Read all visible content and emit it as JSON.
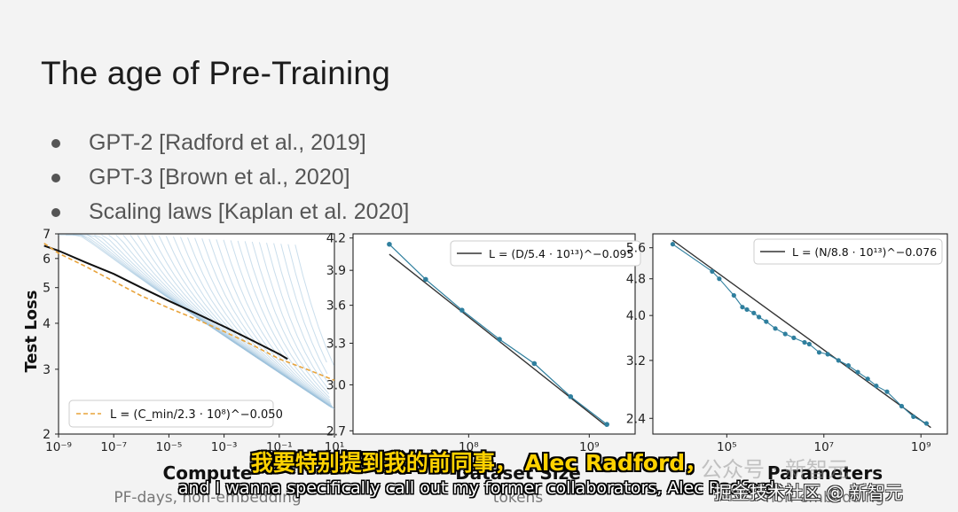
{
  "slide": {
    "title": "The age of Pre-Training",
    "bullets": [
      "GPT-2 [Radford et al., 2019]",
      "GPT-3 [Brown et al., 2020]",
      "Scaling laws [Kaplan et al. 2020]"
    ]
  },
  "chart_data": [
    {
      "type": "line",
      "xlabel": "Compute",
      "xsublabel": "PF-days, non-embedding",
      "ylabel": "Test Loss",
      "xscale": "log",
      "yscale": "log",
      "xlim": [
        1e-09,
        10
      ],
      "ylim": [
        2,
        7
      ],
      "x_ticks": [
        "10⁻⁹",
        "10⁻⁷",
        "10⁻⁵",
        "10⁻³",
        "10⁻¹",
        "10¹"
      ],
      "y_ticks": [
        "2",
        "3",
        "4",
        "5",
        "6",
        "7"
      ],
      "legend": "L = (C_min/2.3 · 10⁸)^−0.050",
      "legend_position": "bottom-left",
      "series": [
        {
          "values": [
            [
              3e-10,
              6.6
            ],
            [
              1e-09,
              6.2
            ],
            [
              1e-08,
              5.7
            ],
            [
              1e-07,
              5.2
            ],
            [
              1e-06,
              4.75
            ],
            [
              1e-05,
              4.4
            ],
            [
              0.0001,
              4.1
            ],
            [
              0.001,
              3.8
            ],
            [
              0.01,
              3.5
            ],
            [
              0.1,
              3.2
            ],
            [
              1,
              3.0
            ]
          ]
        },
        {
          "values": [
            [
              3e-10,
              6.5
            ],
            [
              1e-09,
              6.3
            ],
            [
              1e-08,
              5.85
            ],
            [
              1e-07,
              5.45
            ],
            [
              1e-06,
              5.0
            ],
            [
              1e-05,
              4.6
            ],
            [
              0.0001,
              4.25
            ],
            [
              0.001,
              3.92
            ],
            [
              0.01,
              3.6
            ],
            [
              0.1,
              3.3
            ],
            [
              0.2,
              3.2
            ]
          ]
        }
      ],
      "colors": {
        "fit": "#e8a33a",
        "envelope": "#111111",
        "curves": "#9ec3dd"
      }
    },
    {
      "type": "line",
      "xlabel": "Dataset Size",
      "xsublabel": "tokens",
      "xscale": "log",
      "yscale": "log",
      "y_ticks": [
        "2.7",
        "3.0",
        "3.3",
        "3.6",
        "3.9",
        "4.2"
      ],
      "x_ticks": [
        "10⁸",
        "10⁹"
      ],
      "legend": "L = (D/5.4 · 10¹³)^−0.095",
      "legend_position": "top-right",
      "x": [
        22000000.0,
        44000000.0,
        88000000.0,
        180000000.0,
        350000000.0,
        700000000.0,
        1400000000.0
      ],
      "values": [
        4.14,
        3.82,
        3.56,
        3.33,
        3.15,
        2.92,
        2.74
      ],
      "colors": {
        "points": "#2f7f9e",
        "fit": "#333333"
      }
    },
    {
      "type": "line",
      "xlabel": "Parameters",
      "xsublabel": "non-embedding",
      "xscale": "log",
      "yscale": "log",
      "y_ticks": [
        "2.4",
        "3.2",
        "4.0",
        "4.8",
        "5.6"
      ],
      "x_ticks": [
        "10⁵",
        "10⁷",
        "10⁹"
      ],
      "legend": "L = (N/8.8 · 10¹³)^−0.076",
      "legend_position": "top-right",
      "x": [
        7700.0,
        50000.0,
        70000.0,
        140000.0,
        210000.0,
        260000.0,
        360000.0,
        460000.0,
        650000.0,
        1000000.0,
        1600000.0,
        2400000.0,
        4000000.0,
        5000000.0,
        8000000.0,
        12000000.0,
        20000000.0,
        32000000.0,
        50000000.0,
        80000000.0,
        120000000.0,
        200000000.0,
        400000000.0,
        700000000.0,
        1300000000.0
      ],
      "values": [
        5.7,
        4.98,
        4.8,
        4.42,
        4.17,
        4.12,
        4.05,
        3.97,
        3.88,
        3.75,
        3.65,
        3.58,
        3.5,
        3.47,
        3.33,
        3.3,
        3.2,
        3.12,
        3.02,
        2.92,
        2.82,
        2.74,
        2.55,
        2.42,
        2.34
      ],
      "colors": {
        "points": "#2f7f9e",
        "fit": "#333333"
      }
    }
  ],
  "subtitles": {
    "zh": "我要特别提到我的前同事， Alec Radford，",
    "en": "and I wanna specifically call out my former collaborators, Alec Radford,"
  },
  "watermarks": {
    "account": "公众号 · 新智元",
    "community": "掘金技术社区 @ 新智元"
  }
}
